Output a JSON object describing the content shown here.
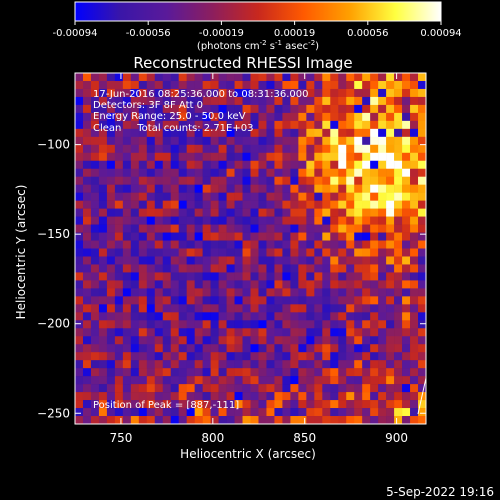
{
  "chart_data": {
    "type": "heatmap",
    "title": "Reconstructed RHESSI Image",
    "xlabel": "Heliocentric X (arcsec)",
    "ylabel": "Heliocentric Y (arcsec)",
    "x_range": [
      725,
      916
    ],
    "y_range": [
      -256,
      -60
    ],
    "x_ticks": [
      750,
      800,
      850,
      900
    ],
    "y_ticks": [
      -100,
      -150,
      -200,
      -250
    ],
    "grid": false,
    "colorbar": {
      "range": [
        -0.00094,
        0.00094
      ],
      "ticks": [
        "-0.00094",
        "-0.00056",
        "-0.00019",
        "0.00019",
        "0.00056",
        "0.00094"
      ],
      "units_text": "(photons cm",
      "units_exp1": "-2",
      "units_mid": " s",
      "units_exp2": "-1",
      "units_mid2": " asec",
      "units_exp3": "-2",
      "units_end": ")",
      "colormap": [
        "#0000ff",
        "#3a16a8",
        "#5a1a9a",
        "#8c1e5e",
        "#c8281e",
        "#ff5a00",
        "#ffa000",
        "#ffff40",
        "#ffffff"
      ]
    },
    "annotations": {
      "line1": "17-Jun-2016 08:25:36.000 to 08:31:36.000",
      "line2": "Detectors: 3F 8F  Att 0",
      "line3": "Energy Range: 25.0 - 50.0 keV",
      "line4": "Clean     Total counts: 2.71E+03",
      "peak": "Position of Peak = [887,-111]"
    },
    "peak_position": [
      887,
      -111
    ]
  },
  "footer": {
    "timestamp": "5-Sep-2022 19:16"
  }
}
